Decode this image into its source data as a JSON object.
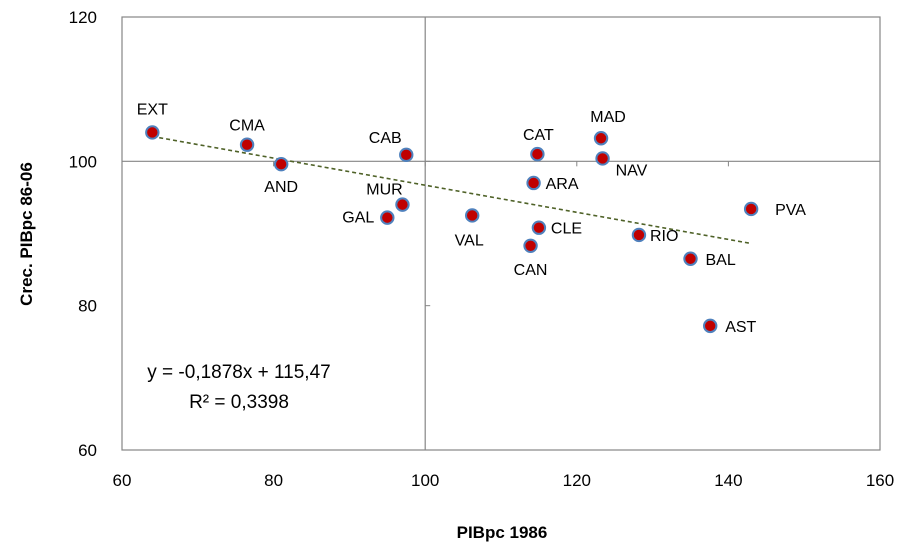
{
  "chart_data": {
    "type": "scatter",
    "title": "",
    "xlabel": "PIBpc 1986",
    "ylabel": "Crec. PIBpc 86-06",
    "xlim": [
      60,
      160
    ],
    "ylim": [
      60,
      120
    ],
    "x_ticks": [
      "60",
      "80",
      "100",
      "120",
      "140",
      "160"
    ],
    "y_ticks": [
      "60",
      "80",
      "100",
      "120"
    ],
    "reference_lines": {
      "x": 100,
      "y": 100
    },
    "marker_color": "#c00000",
    "marker_edge_color": "#4f81bd",
    "trendline_color": "#4f6228",
    "points": [
      {
        "label": "EXT",
        "x": 64,
        "y": 104
      },
      {
        "label": "CMA",
        "x": 76.5,
        "y": 102.3
      },
      {
        "label": "AND",
        "x": 81,
        "y": 99.6
      },
      {
        "label": "CAB",
        "x": 97.5,
        "y": 100.9
      },
      {
        "label": "MUR",
        "x": 97,
        "y": 94
      },
      {
        "label": "GAL",
        "x": 95,
        "y": 92.2
      },
      {
        "label": "VAL",
        "x": 106.2,
        "y": 92.5
      },
      {
        "label": "CAT",
        "x": 114.8,
        "y": 101
      },
      {
        "label": "ARA",
        "x": 114.3,
        "y": 97
      },
      {
        "label": "CLE",
        "x": 115,
        "y": 90.8
      },
      {
        "label": "CAN",
        "x": 113.9,
        "y": 88.3
      },
      {
        "label": "MAD",
        "x": 123.2,
        "y": 103.2
      },
      {
        "label": "NAV",
        "x": 123.4,
        "y": 100.4
      },
      {
        "label": "RIO",
        "x": 128.2,
        "y": 89.8
      },
      {
        "label": "BAL",
        "x": 135,
        "y": 86.5
      },
      {
        "label": "AST",
        "x": 137.6,
        "y": 77.2
      },
      {
        "label": "PVA",
        "x": 143,
        "y": 93.4
      }
    ],
    "trendline": {
      "type": "linear",
      "slope": -0.1878,
      "intercept": 115.47,
      "x_range": [
        64,
        143
      ],
      "equation_label": "y = -0,1878x + 115,47",
      "r2_label": "R² = 0,3398"
    }
  }
}
